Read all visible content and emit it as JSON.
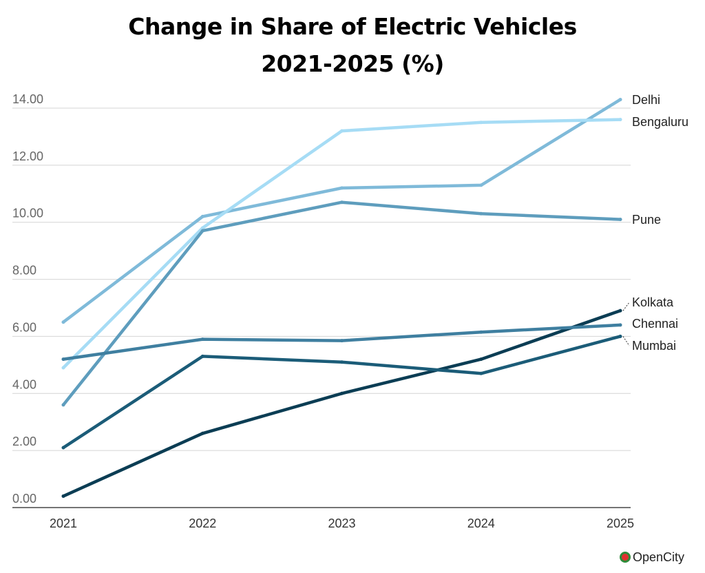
{
  "title_line1": "Change in Share of Electric Vehicles",
  "title_line2": "2021-2025 (%)",
  "logo_text": "OpenCity",
  "chart_data": {
    "type": "line",
    "title": "Change in Share of Electric Vehicles 2021-2025 (%)",
    "xlabel": "",
    "ylabel": "",
    "x": [
      "2021",
      "2022",
      "2023",
      "2024",
      "2025"
    ],
    "ylim": [
      0,
      14
    ],
    "yticks": [
      "0.00",
      "2.00",
      "4.00",
      "6.00",
      "8.00",
      "10.00",
      "12.00",
      "14.00"
    ],
    "grid": true,
    "legend": "inline labels at right end of lines",
    "series": [
      {
        "name": "Delhi",
        "values": [
          6.5,
          10.2,
          11.2,
          11.3,
          14.3
        ],
        "color": "#7fbad9"
      },
      {
        "name": "Bengaluru",
        "values": [
          4.9,
          9.8,
          13.2,
          13.5,
          13.6
        ],
        "color": "#a6dcf5"
      },
      {
        "name": "Pune",
        "values": [
          3.6,
          9.7,
          10.7,
          10.3,
          10.1
        ],
        "color": "#5e9dbd"
      },
      {
        "name": "Kolkata",
        "values": [
          0.4,
          2.6,
          4.0,
          5.2,
          6.9
        ],
        "color": "#0b3d54"
      },
      {
        "name": "Chennai",
        "values": [
          5.2,
          5.9,
          5.85,
          6.15,
          6.4
        ],
        "color": "#3f7fa0"
      },
      {
        "name": "Mumbai",
        "values": [
          2.1,
          5.3,
          5.1,
          4.7,
          6.0
        ],
        "color": "#1b5c78"
      }
    ]
  }
}
